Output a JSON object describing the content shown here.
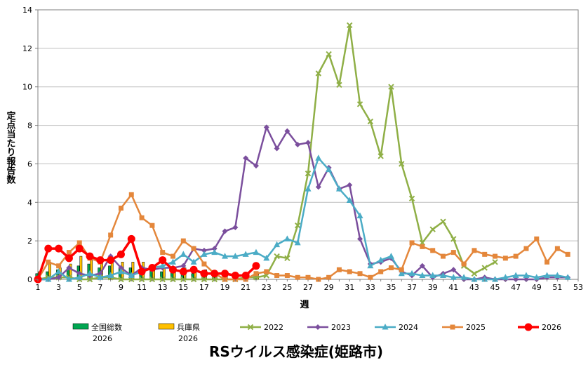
{
  "chart_data": {
    "type": "line",
    "title": "RSウイルス感染症(姫路市)",
    "xlabel": "週",
    "ylabel": "定点当たり報告数",
    "ylim": [
      0,
      14
    ],
    "xlim": [
      1,
      53
    ],
    "y_ticks": [
      0,
      2,
      4,
      6,
      8,
      10,
      12,
      14
    ],
    "x_ticks": [
      1,
      3,
      5,
      7,
      9,
      11,
      13,
      15,
      17,
      19,
      21,
      23,
      25,
      27,
      29,
      31,
      33,
      35,
      37,
      39,
      41,
      43,
      45,
      47,
      49,
      51,
      53
    ],
    "grid": "horizontal",
    "legend_position": "bottom",
    "bar_series": [
      {
        "name": "全国総数 2026",
        "name_lines": [
          "全国総数",
          "2026"
        ],
        "color": "#00a651",
        "values": [
          0.3,
          0.4,
          0.5,
          0.6,
          0.7,
          0.8,
          0.6,
          0.7,
          0.6,
          0.6,
          0.5,
          0.5,
          0.4,
          0.4,
          0.3,
          0.3,
          0.3,
          0.2,
          0.2,
          0.2,
          0.2,
          0.2
        ]
      },
      {
        "name": "兵庫県 2026",
        "name_lines": [
          "兵庫県",
          "2026"
        ],
        "color": "#ffc000",
        "values": [
          0.4,
          0.9,
          0.6,
          0.8,
          1.2,
          1.1,
          1.0,
          1.0,
          0.9,
          0.9,
          0.9,
          0.7,
          0.6,
          0.5,
          0.6,
          0.6,
          0.5,
          0.3,
          0.3,
          0.3,
          0.3,
          0.3
        ]
      }
    ],
    "series": [
      {
        "name": "2022",
        "color": "#8faf46",
        "marker": "x",
        "x": [
          1,
          2,
          3,
          4,
          5,
          6,
          7,
          8,
          9,
          10,
          11,
          12,
          13,
          14,
          15,
          16,
          17,
          18,
          19,
          20,
          21,
          22,
          23,
          24,
          25,
          26,
          27,
          28,
          29,
          30,
          31,
          32,
          33,
          34,
          35,
          36,
          37,
          38,
          39,
          40,
          41,
          42,
          43,
          44,
          45
        ],
        "values": [
          0,
          0.1,
          0.1,
          0.1,
          0,
          0,
          0.1,
          0.1,
          0,
          0,
          0,
          0,
          0,
          0,
          0,
          0,
          0,
          0,
          0,
          0,
          0.1,
          0.1,
          0.2,
          1.2,
          1.1,
          2.8,
          5.5,
          10.7,
          11.7,
          10.1,
          13.2,
          9.1,
          8.2,
          6.4,
          10.0,
          6.0,
          4.2,
          1.9,
          2.6,
          3.0,
          2.1,
          0.7,
          0.3,
          0.6,
          0.9
        ]
      },
      {
        "name": "2023",
        "color": "#7b4f9d",
        "marker": "diamond",
        "x": [
          1,
          2,
          3,
          4,
          5,
          6,
          7,
          8,
          9,
          10,
          11,
          12,
          13,
          14,
          15,
          16,
          17,
          18,
          19,
          20,
          21,
          22,
          23,
          24,
          25,
          26,
          27,
          28,
          29,
          30,
          31,
          32,
          33,
          34,
          35,
          36,
          37,
          38,
          39,
          40,
          41,
          42,
          43,
          44,
          45,
          46,
          47,
          48,
          49,
          50,
          51,
          52
        ],
        "values": [
          0,
          0,
          0.1,
          0.6,
          0.3,
          0.2,
          0.3,
          1.2,
          0.6,
          0.2,
          0.6,
          0.5,
          0.6,
          0.6,
          0.7,
          1.6,
          1.5,
          1.6,
          2.5,
          2.7,
          6.3,
          5.9,
          7.9,
          6.8,
          7.7,
          7.0,
          7.1,
          4.8,
          5.8,
          4.7,
          4.9,
          2.1,
          0.8,
          0.9,
          1.1,
          0.4,
          0.2,
          0.7,
          0.1,
          0.3,
          0.5,
          0,
          0,
          0.1,
          0,
          0,
          0,
          0,
          0,
          0.1,
          0.1,
          0.1
        ]
      },
      {
        "name": "2024",
        "color": "#4bacc6",
        "marker": "triangle",
        "x": [
          1,
          2,
          3,
          4,
          5,
          6,
          7,
          8,
          9,
          10,
          11,
          12,
          13,
          14,
          15,
          16,
          17,
          18,
          19,
          20,
          21,
          22,
          23,
          24,
          25,
          26,
          27,
          28,
          29,
          30,
          31,
          32,
          33,
          34,
          35,
          36,
          37,
          38,
          39,
          40,
          41,
          42,
          43,
          44,
          45,
          46,
          47,
          48,
          49,
          50,
          51,
          52
        ],
        "values": [
          0,
          0,
          0.4,
          0,
          0.1,
          0.3,
          0.1,
          0.2,
          0.4,
          0.2,
          0.4,
          0.6,
          0.7,
          0.9,
          1.3,
          0.9,
          1.3,
          1.4,
          1.2,
          1.2,
          1.3,
          1.4,
          1.1,
          1.8,
          2.1,
          1.9,
          4.7,
          6.3,
          5.7,
          4.7,
          4.1,
          3.3,
          0.7,
          1.0,
          1.2,
          0.3,
          0.3,
          0.2,
          0.2,
          0.2,
          0.1,
          0.1,
          0,
          0,
          0,
          0.1,
          0.2,
          0.2,
          0.1,
          0.2,
          0.2,
          0.1
        ]
      },
      {
        "name": "2025",
        "color": "#e4873b",
        "marker": "square",
        "x": [
          1,
          2,
          3,
          4,
          5,
          6,
          7,
          8,
          9,
          10,
          11,
          12,
          13,
          14,
          15,
          16,
          17,
          18,
          19,
          20,
          21,
          22,
          23,
          24,
          25,
          26,
          27,
          28,
          29,
          30,
          31,
          32,
          33,
          34,
          35,
          36,
          37,
          38,
          39,
          40,
          41,
          42,
          43,
          44,
          45,
          46,
          47,
          48,
          49,
          50,
          51,
          52
        ],
        "values": [
          0,
          0.9,
          0.7,
          1.4,
          1.9,
          1.1,
          0.9,
          2.3,
          3.7,
          4.4,
          3.2,
          2.8,
          1.4,
          1.2,
          2.0,
          1.6,
          0.8,
          0.3,
          0,
          0,
          0,
          0.3,
          0.4,
          0.2,
          0.2,
          0.1,
          0.1,
          0,
          0.1,
          0.5,
          0.4,
          0.3,
          0.1,
          0.4,
          0.6,
          0.5,
          1.9,
          1.7,
          1.5,
          1.2,
          1.4,
          0.8,
          1.5,
          1.3,
          1.2,
          1.1,
          1.2,
          1.6,
          2.1,
          0.9,
          1.6,
          1.3
        ]
      },
      {
        "name": "2026",
        "color": "#ff0000",
        "marker": "circle",
        "x": [
          1,
          2,
          3,
          4,
          5,
          6,
          7,
          8,
          9,
          10,
          11,
          12,
          13,
          14,
          15,
          16,
          17,
          18,
          19,
          20,
          21,
          22
        ],
        "values": [
          0,
          1.6,
          1.6,
          1.1,
          1.6,
          1.2,
          1.0,
          1.0,
          1.3,
          2.1,
          0.4,
          0.6,
          1.0,
          0.5,
          0.4,
          0.5,
          0.3,
          0.3,
          0.3,
          0.2,
          0.2,
          0.7
        ]
      }
    ]
  }
}
